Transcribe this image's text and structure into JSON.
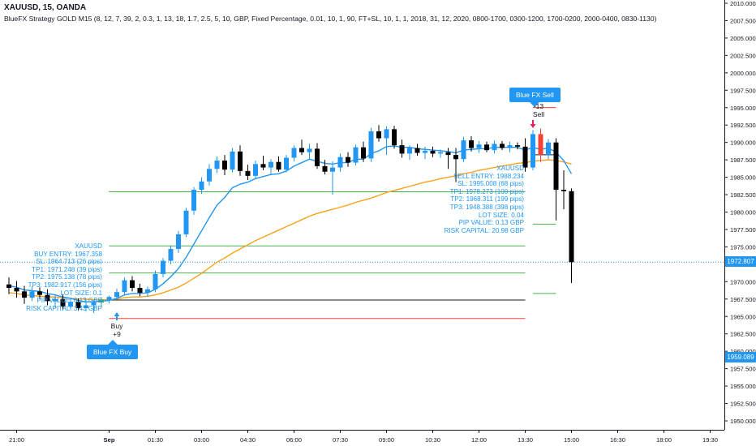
{
  "header": {
    "title": "XAUUSD, 15, OANDA",
    "study": "BlueFX Strategy GOLD M15 (8, 12, 7, 39, 2, 0.3, 1, 13, 18, 1.7, 2.5, 5, 10, GBP, Fixed Percentage, 0.01, 10, 1, 90, FT+SL, 10, 1, 1, 2018, 31, 12, 2020, 0800-1700, 0300-1200, 1700-0200, 2000-0400, 0830-1130)"
  },
  "colors": {
    "up_candle": "#2196f3",
    "down_candle": "#000000",
    "ema_fast": "#2196f3",
    "ema_slow": "#f7a21b",
    "tp_line": "#4caf50",
    "sl_line": "#f44336",
    "entry_line": "#131722",
    "signal_up": "#2196f3",
    "signal_down": "#e91e63",
    "last_price_tag": "#2196f3"
  },
  "sell_callout": {
    "label": "Blue FX Sell",
    "count": "-13",
    "text": "Sell"
  },
  "buy_callout": {
    "label": "Blue FX Buy",
    "count": "+9",
    "text": "Buy"
  },
  "sell_panel": {
    "lines": [
      "XAUUSD",
      "SELL ENTRY: 1988.234",
      "SL: 1995.008 (68 pips)",
      "TP1: 1978.273 (100 pips)",
      "TP2: 1968.311 (199 pips)",
      "TP3: 1948.388 (398 pips)",
      "LOT SIZE: 0.04",
      "PIP VALUE: 0.13 GBP",
      "RISK CAPITAL: 20.98 GBP"
    ]
  },
  "buy_panel": {
    "lines": [
      "XAUUSD",
      "BUY ENTRY: 1967.358",
      "SL: 1964.713 (26 pips)",
      "TP1: 1971.248 (39 pips)",
      "TP2: 1975.138 (78 pips)",
      "TP3: 1982.917 (156 pips)",
      "LOT SIZE: 0.1",
      "PIP VALUE: 0.13 GBP",
      "RISK CAPITAL: 3.43 GBP"
    ]
  },
  "price_labels": {
    "last": "1972.807",
    "lower": "1959.089"
  },
  "chart_data": {
    "type": "candlestick",
    "symbol": "XAUUSD",
    "timeframe": "15",
    "ylim": [
      1948.0,
      2010.5
    ],
    "y_ticks": [
      "1950.000",
      "1952.500",
      "1955.000",
      "1957.500",
      "1960.000",
      "1962.500",
      "1965.000",
      "1967.500",
      "1970.000",
      "1972.500",
      "1975.000",
      "1977.500",
      "1980.000",
      "1982.500",
      "1985.000",
      "1987.500",
      "1990.000",
      "1992.500",
      "1995.000",
      "1997.500",
      "2000.000",
      "2002.500",
      "2005.000",
      "2007.500",
      "2010.000"
    ],
    "x_ticks": [
      "21:00",
      "Sep",
      "01:30",
      "03:00",
      "04:30",
      "06:00",
      "07:30",
      "09:00",
      "10:30",
      "12:00",
      "13:30",
      "15:00",
      "16:30",
      "18:00",
      "19:30"
    ],
    "x_tick_bold": "Sep",
    "x_tick_bar_index": [
      1,
      13,
      19,
      25,
      31,
      37,
      43,
      49,
      55,
      61,
      67,
      73,
      79,
      85,
      91
    ],
    "candles": [
      {
        "o": 1969.6,
        "h": 1970.6,
        "l": 1968.2,
        "c": 1969.1
      },
      {
        "o": 1969.1,
        "h": 1970.1,
        "l": 1967.7,
        "c": 1968.6
      },
      {
        "o": 1968.6,
        "h": 1969.4,
        "l": 1966.8,
        "c": 1967.7
      },
      {
        "o": 1967.7,
        "h": 1969.3,
        "l": 1967.2,
        "c": 1968.6
      },
      {
        "o": 1968.6,
        "h": 1969.2,
        "l": 1967.5,
        "c": 1968.1
      },
      {
        "o": 1968.1,
        "h": 1968.9,
        "l": 1966.6,
        "c": 1967.2
      },
      {
        "o": 1967.2,
        "h": 1968.0,
        "l": 1966.3,
        "c": 1967.5
      },
      {
        "o": 1967.5,
        "h": 1968.2,
        "l": 1965.9,
        "c": 1966.4
      },
      {
        "o": 1966.4,
        "h": 1967.6,
        "l": 1966.0,
        "c": 1967.1
      },
      {
        "o": 1967.1,
        "h": 1967.6,
        "l": 1965.8,
        "c": 1966.2
      },
      {
        "o": 1966.2,
        "h": 1967.4,
        "l": 1965.7,
        "c": 1966.6
      },
      {
        "o": 1966.6,
        "h": 1967.3,
        "l": 1965.5,
        "c": 1967.0
      },
      {
        "o": 1967.0,
        "h": 1967.8,
        "l": 1966.3,
        "c": 1967.4
      },
      {
        "o": 1967.4,
        "h": 1968.0,
        "l": 1966.9,
        "c": 1967.8
      },
      {
        "o": 1967.8,
        "h": 1969.0,
        "l": 1967.4,
        "c": 1968.5
      },
      {
        "o": 1968.5,
        "h": 1970.6,
        "l": 1968.1,
        "c": 1970.2
      },
      {
        "o": 1970.2,
        "h": 1970.8,
        "l": 1968.6,
        "c": 1969.1
      },
      {
        "o": 1969.1,
        "h": 1969.7,
        "l": 1967.9,
        "c": 1968.4
      },
      {
        "o": 1968.4,
        "h": 1969.3,
        "l": 1967.8,
        "c": 1968.9
      },
      {
        "o": 1968.9,
        "h": 1971.6,
        "l": 1968.5,
        "c": 1971.1
      },
      {
        "o": 1971.1,
        "h": 1973.4,
        "l": 1970.6,
        "c": 1973.0
      },
      {
        "o": 1973.0,
        "h": 1975.2,
        "l": 1972.5,
        "c": 1974.7
      },
      {
        "o": 1974.7,
        "h": 1977.3,
        "l": 1974.1,
        "c": 1976.8
      },
      {
        "o": 1976.8,
        "h": 1980.6,
        "l": 1976.4,
        "c": 1980.2
      },
      {
        "o": 1980.2,
        "h": 1983.6,
        "l": 1979.6,
        "c": 1983.2
      },
      {
        "o": 1983.2,
        "h": 1985.0,
        "l": 1982.6,
        "c": 1984.4
      },
      {
        "o": 1984.4,
        "h": 1986.9,
        "l": 1983.8,
        "c": 1986.2
      },
      {
        "o": 1986.2,
        "h": 1988.0,
        "l": 1985.6,
        "c": 1987.4
      },
      {
        "o": 1987.4,
        "h": 1988.2,
        "l": 1985.3,
        "c": 1986.1
      },
      {
        "o": 1986.1,
        "h": 1989.2,
        "l": 1985.7,
        "c": 1988.7
      },
      {
        "o": 1988.7,
        "h": 1989.6,
        "l": 1985.2,
        "c": 1985.9
      },
      {
        "o": 1985.9,
        "h": 1986.8,
        "l": 1984.6,
        "c": 1985.2
      },
      {
        "o": 1985.2,
        "h": 1987.4,
        "l": 1984.9,
        "c": 1986.9
      },
      {
        "o": 1986.9,
        "h": 1988.1,
        "l": 1986.0,
        "c": 1986.4
      },
      {
        "o": 1986.4,
        "h": 1987.6,
        "l": 1985.4,
        "c": 1987.2
      },
      {
        "o": 1987.2,
        "h": 1988.0,
        "l": 1985.8,
        "c": 1986.1
      },
      {
        "o": 1986.1,
        "h": 1988.2,
        "l": 1985.7,
        "c": 1987.8
      },
      {
        "o": 1987.8,
        "h": 1989.6,
        "l": 1987.3,
        "c": 1989.2
      },
      {
        "o": 1989.2,
        "h": 1990.4,
        "l": 1988.2,
        "c": 1988.6
      },
      {
        "o": 1988.6,
        "h": 1989.8,
        "l": 1987.5,
        "c": 1989.1
      },
      {
        "o": 1989.1,
        "h": 1989.9,
        "l": 1986.2,
        "c": 1986.6
      },
      {
        "o": 1986.6,
        "h": 1987.5,
        "l": 1985.4,
        "c": 1985.8
      },
      {
        "o": 1985.8,
        "h": 1987.3,
        "l": 1982.5,
        "c": 1986.4
      },
      {
        "o": 1986.4,
        "h": 1988.4,
        "l": 1985.8,
        "c": 1987.9
      },
      {
        "o": 1987.9,
        "h": 1988.6,
        "l": 1986.5,
        "c": 1987.1
      },
      {
        "o": 1987.1,
        "h": 1989.7,
        "l": 1986.7,
        "c": 1989.3
      },
      {
        "o": 1989.3,
        "h": 1990.1,
        "l": 1987.2,
        "c": 1987.7
      },
      {
        "o": 1987.7,
        "h": 1992.1,
        "l": 1987.2,
        "c": 1991.6
      },
      {
        "o": 1991.6,
        "h": 1992.5,
        "l": 1990.1,
        "c": 1990.6
      },
      {
        "o": 1990.6,
        "h": 1992.3,
        "l": 1988.2,
        "c": 1991.9
      },
      {
        "o": 1991.9,
        "h": 1992.4,
        "l": 1989.1,
        "c": 1989.6
      },
      {
        "o": 1989.6,
        "h": 1990.4,
        "l": 1987.8,
        "c": 1988.4
      },
      {
        "o": 1988.4,
        "h": 1989.6,
        "l": 1987.5,
        "c": 1989.2
      },
      {
        "o": 1989.2,
        "h": 1989.8,
        "l": 1988.1,
        "c": 1988.5
      },
      {
        "o": 1988.5,
        "h": 1989.4,
        "l": 1987.6,
        "c": 1988.8
      },
      {
        "o": 1988.8,
        "h": 1989.4,
        "l": 1987.9,
        "c": 1988.4
      },
      {
        "o": 1988.4,
        "h": 1989.0,
        "l": 1987.8,
        "c": 1988.6
      },
      {
        "o": 1988.6,
        "h": 1989.2,
        "l": 1986.2,
        "c": 1988.2
      },
      {
        "o": 1988.2,
        "h": 1989.2,
        "l": 1984.3,
        "c": 1987.6
      },
      {
        "o": 1987.6,
        "h": 1990.8,
        "l": 1987.2,
        "c": 1990.3
      },
      {
        "o": 1990.3,
        "h": 1990.9,
        "l": 1988.7,
        "c": 1989.2
      },
      {
        "o": 1989.2,
        "h": 1990.2,
        "l": 1988.5,
        "c": 1989.7
      },
      {
        "o": 1989.7,
        "h": 1990.1,
        "l": 1988.6,
        "c": 1988.9
      },
      {
        "o": 1988.9,
        "h": 1990.3,
        "l": 1988.4,
        "c": 1989.8
      },
      {
        "o": 1989.8,
        "h": 1990.2,
        "l": 1988.9,
        "c": 1989.2
      },
      {
        "o": 1989.2,
        "h": 1990.1,
        "l": 1988.6,
        "c": 1989.6
      },
      {
        "o": 1989.6,
        "h": 1990.0,
        "l": 1989.0,
        "c": 1989.4
      },
      {
        "o": 1989.4,
        "h": 1990.6,
        "l": 1985.8,
        "c": 1986.4
      },
      {
        "o": 1986.4,
        "h": 1991.8,
        "l": 1986.0,
        "c": 1991.2
      },
      {
        "o": 1991.2,
        "h": 1992.0,
        "l": 1987.2,
        "c": 1988.2
      },
      {
        "o": 1988.2,
        "h": 1990.5,
        "l": 1987.6,
        "c": 1990.0
      },
      {
        "o": 1990.0,
        "h": 1990.6,
        "l": 1978.8,
        "c": 1983.2
      },
      {
        "o": 1983.2,
        "h": 1986.0,
        "l": 1980.4,
        "c": 1983.0
      },
      {
        "o": 1983.0,
        "h": 1983.4,
        "l": 1969.8,
        "c": 1972.8
      }
    ],
    "ema_fast": [
      1969.4,
      1969.2,
      1968.8,
      1968.7,
      1968.6,
      1968.3,
      1968.1,
      1967.8,
      1967.6,
      1967.3,
      1967.1,
      1967.1,
      1967.2,
      1967.3,
      1967.6,
      1968.1,
      1968.3,
      1968.3,
      1968.4,
      1968.9,
      1969.7,
      1970.7,
      1971.9,
      1973.5,
      1975.4,
      1977.3,
      1979.2,
      1981.0,
      1982.1,
      1983.5,
      1984.0,
      1984.3,
      1984.8,
      1985.1,
      1985.4,
      1985.5,
      1985.9,
      1986.6,
      1987.1,
      1987.6,
      1987.3,
      1987.0,
      1986.9,
      1987.1,
      1987.1,
      1987.6,
      1987.6,
      1988.4,
      1988.8,
      1989.4,
      1989.5,
      1989.3,
      1989.3,
      1989.1,
      1989.0,
      1988.9,
      1988.8,
      1988.7,
      1988.5,
      1988.9,
      1989.0,
      1989.1,
      1989.1,
      1989.3,
      1989.3,
      1989.3,
      1989.3,
      1988.9,
      1989.3,
      1989.0,
      1989.2,
      1988.6,
      1987.4,
      1985.5
    ],
    "ema_slow": [
      1968.4,
      1968.3,
      1968.1,
      1968.0,
      1967.9,
      1967.8,
      1967.8,
      1967.7,
      1967.6,
      1967.5,
      1967.5,
      1967.4,
      1967.4,
      1967.4,
      1967.5,
      1967.7,
      1967.8,
      1967.8,
      1967.9,
      1968.1,
      1968.4,
      1968.8,
      1969.2,
      1969.8,
      1970.5,
      1971.2,
      1972.0,
      1972.8,
      1973.4,
      1974.1,
      1974.7,
      1975.3,
      1975.9,
      1976.4,
      1976.9,
      1977.4,
      1977.9,
      1978.4,
      1978.9,
      1979.4,
      1979.8,
      1980.1,
      1980.4,
      1980.7,
      1981.0,
      1981.4,
      1981.7,
      1982.0,
      1982.4,
      1982.8,
      1983.1,
      1983.4,
      1983.7,
      1984.0,
      1984.3,
      1984.5,
      1984.8,
      1985.0,
      1985.2,
      1985.5,
      1985.7,
      1986.0,
      1986.2,
      1986.4,
      1986.6,
      1986.8,
      1987.0,
      1987.1,
      1987.3,
      1987.4,
      1987.5,
      1987.4,
      1987.2,
      1986.9
    ],
    "sell_levels": {
      "entry": 1988.234,
      "sl": 1995.008,
      "tp1": 1978.273,
      "tp2": 1968.311,
      "tp3": 1948.388
    },
    "buy_levels": {
      "entry": 1967.358,
      "sl": 1964.713,
      "tp1": 1971.248,
      "tp2": 1975.138,
      "tp3": 1982.917
    },
    "last_price": 1972.807
  }
}
